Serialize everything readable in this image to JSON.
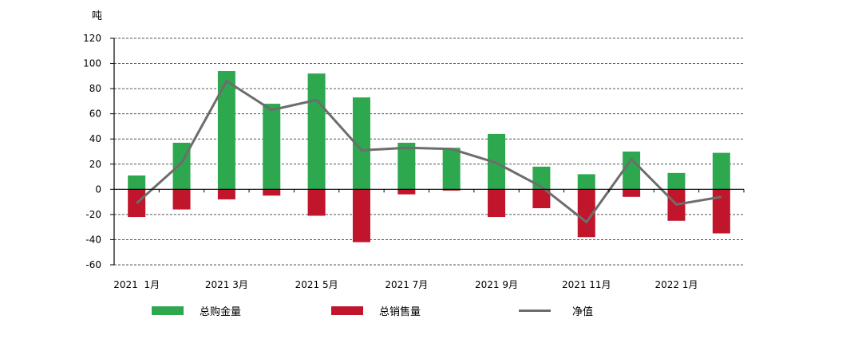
{
  "chart_data": {
    "type": "bar",
    "ylabel": "吨",
    "ylim": [
      -60,
      120
    ],
    "yticks": [
      120,
      100,
      80,
      60,
      40,
      20,
      0,
      -20,
      -40,
      -60
    ],
    "grid": true,
    "legend_position": "bottom",
    "x_periods": [
      "2021 1月",
      "2021 2月",
      "2021 3月",
      "2021 4月",
      "2021 5月",
      "2021 6月",
      "2021 7月",
      "2021 8月",
      "2021 9月",
      "2021 10月",
      "2021 11月",
      "2021 12月",
      "2022 1月",
      "2022 2月"
    ],
    "xtick_labels": [
      {
        "index": 0,
        "label": "2021  1月"
      },
      {
        "index": 2,
        "label": "2021 3月"
      },
      {
        "index": 4,
        "label": "2021 5月"
      },
      {
        "index": 6,
        "label": "2021 7月"
      },
      {
        "index": 8,
        "label": "2021 9月"
      },
      {
        "index": 10,
        "label": "2021 11月"
      },
      {
        "index": 12,
        "label": "2022 1月"
      }
    ],
    "series": [
      {
        "name": "总购金量",
        "type": "bar",
        "color": "#2ea84f",
        "values": [
          11,
          37,
          94,
          68,
          92,
          73,
          37,
          33,
          44,
          18,
          12,
          30,
          13,
          29
        ]
      },
      {
        "name": "总销售量",
        "type": "bar",
        "color": "#c0152a",
        "values": [
          -22,
          -16,
          -8,
          -5,
          -21,
          -42,
          -4,
          -1,
          -22,
          -15,
          -38,
          -6,
          -25,
          -35
        ]
      },
      {
        "name": "净值",
        "type": "line",
        "color": "#6d6d6d",
        "values": [
          -11,
          21,
          86,
          63,
          71,
          31,
          33,
          32,
          21,
          2,
          -26,
          24,
          -12,
          -6
        ]
      }
    ]
  }
}
